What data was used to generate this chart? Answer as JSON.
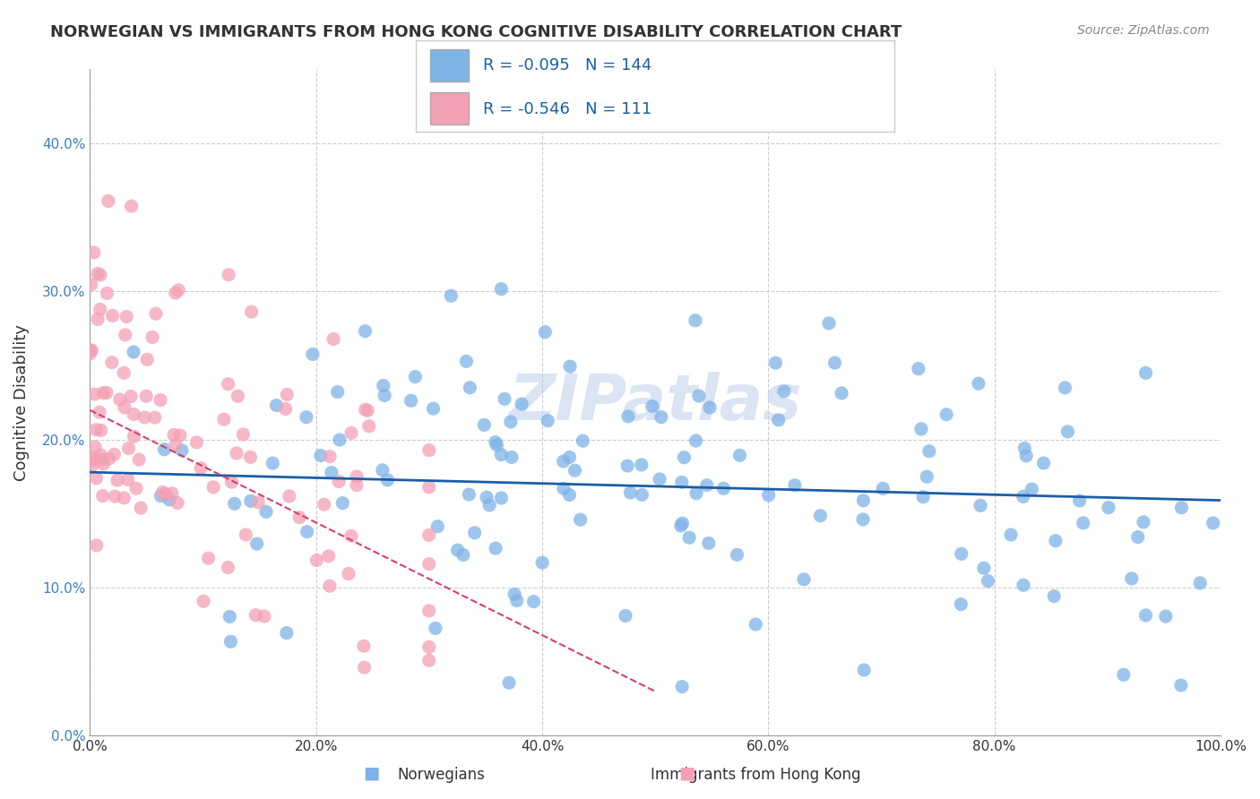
{
  "title": "NORWEGIAN VS IMMIGRANTS FROM HONG KONG COGNITIVE DISABILITY CORRELATION CHART",
  "source": "Source: ZipAtlas.com",
  "ylabel": "Cognitive Disability",
  "xlim": [
    0.0,
    1.0
  ],
  "ylim": [
    0.0,
    0.45
  ],
  "x_ticks": [
    0.0,
    0.2,
    0.4,
    0.6,
    0.8,
    1.0
  ],
  "x_tick_labels": [
    "0.0%",
    "20.0%",
    "40.0%",
    "60.0%",
    "80.0%",
    "100.0%"
  ],
  "y_ticks": [
    0.0,
    0.1,
    0.2,
    0.3,
    0.4
  ],
  "y_tick_labels": [
    "0.0%",
    "10.0%",
    "20.0%",
    "30.0%",
    "40.0%"
  ],
  "legend_labels": [
    "Norwegians",
    "Immigrants from Hong Kong"
  ],
  "blue_R": "-0.095",
  "blue_N": "144",
  "pink_R": "-0.546",
  "pink_N": "111",
  "blue_color": "#7EB3E8",
  "pink_color": "#F4A0B5",
  "blue_line_color": "#1B5EA6",
  "pink_line_color": "#D44070",
  "watermark": "ZIPatlas",
  "background_color": "#ffffff",
  "grid_color": "#CCCCCC",
  "title_color": "#333333",
  "source_color": "#888888",
  "seed": 42,
  "blue_n": 144,
  "pink_n": 111,
  "blue_slope": -0.019,
  "blue_intercept": 0.178,
  "pink_slope": -0.38,
  "pink_intercept": 0.22
}
